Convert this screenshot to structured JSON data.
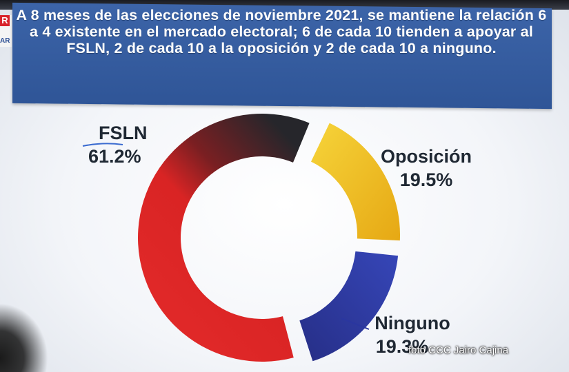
{
  "header": {
    "text": "A 8 meses de las elecciones  de noviembre 2021, se  mantiene la relación 6 a 4 existente en el mercado electoral; 6 de cada 10 tienden a apoyar al FSLN, 2 de cada 10 a la oposición y 2 de cada 10 a ninguno."
  },
  "logo": {
    "mark": "R",
    "text": "AR"
  },
  "chart_data": {
    "type": "pie",
    "style": "donut",
    "title": "",
    "slices": [
      {
        "name": "FSLN",
        "value": 61.2,
        "label": "61.2%",
        "color": "#e02a2a",
        "color2": "#2a2a2e"
      },
      {
        "name": "Oposición",
        "value": 19.5,
        "label": "19.5%",
        "color": "#f2c21f"
      },
      {
        "name": "Ninguno",
        "value": 19.3,
        "label": "19.3%",
        "color": "#2f3aa0"
      }
    ]
  },
  "credit": "foto CCC Jairo Cajina"
}
